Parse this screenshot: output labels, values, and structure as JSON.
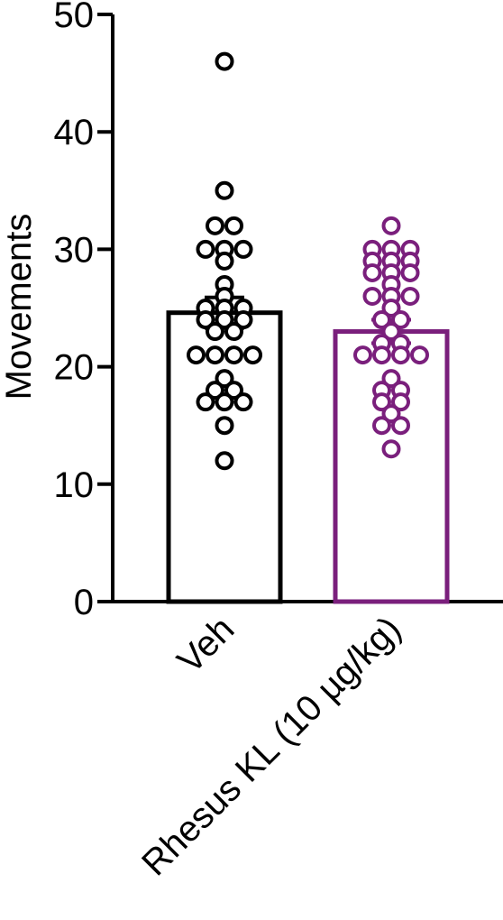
{
  "chart_data": {
    "type": "bar",
    "title": "",
    "xlabel": "",
    "ylabel": "Movements",
    "ylim": [
      0,
      50
    ],
    "yticks": [
      0,
      10,
      20,
      30,
      40,
      50
    ],
    "grid": false,
    "categories": [
      "Veh",
      "Rhesus KL (10 µg/kg)"
    ],
    "series": [
      {
        "category": "Veh",
        "color": "#000000",
        "mean": 24.6,
        "sem": 1.3,
        "points": [
          46,
          35,
          32,
          32,
          30,
          30,
          30,
          29,
          27,
          26,
          25,
          25,
          25,
          24,
          24,
          24,
          23,
          23,
          21,
          21,
          21,
          21,
          19,
          18,
          18,
          17,
          17,
          17,
          15,
          12
        ]
      },
      {
        "category": "Rhesus KL (10 µg/kg)",
        "color": "#7a1f7c",
        "mean": 23.0,
        "sem": 1.0,
        "points": [
          32,
          30,
          30,
          30,
          29,
          29,
          29,
          28,
          28,
          28,
          27,
          26,
          26,
          26,
          25,
          24,
          24,
          23,
          22,
          22,
          21,
          21,
          21,
          21,
          19,
          18,
          18,
          17,
          17,
          16,
          15,
          15,
          13
        ]
      }
    ]
  }
}
